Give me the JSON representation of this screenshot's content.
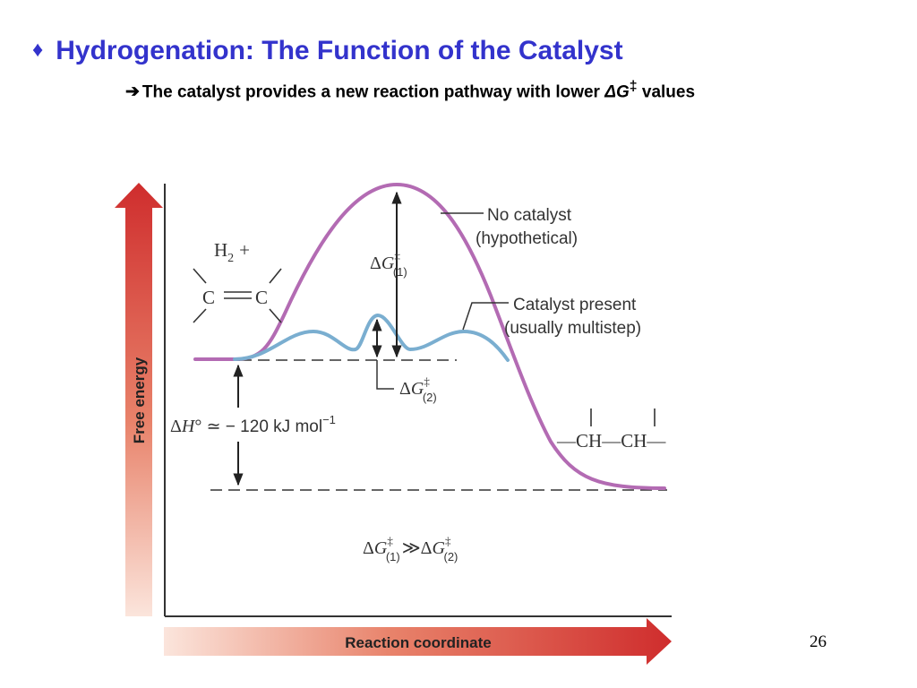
{
  "slide": {
    "title_bullet": "♦",
    "title": "Hydrogenation: The Function of the Catalyst",
    "subtitle_arrow": "➔",
    "subtitle_prefix": "The catalyst provides a new reaction pathway with lower ",
    "subtitle_symbol": "ΔG",
    "subtitle_super": "‡",
    "subtitle_suffix": " values",
    "page_number": "26"
  },
  "diagram": {
    "y_axis_label": "Free energy",
    "x_axis_label": "Reaction coordinate",
    "reactants": {
      "h2_text": "H",
      "h2_sub": "2",
      "plus": "+",
      "carbon1": "C",
      "carbon2": "C"
    },
    "product": {
      "dash1": "—",
      "ch1": "CH",
      "dash2": "—",
      "ch2": "CH",
      "dash3": "—"
    },
    "no_catalyst_label_1": "No catalyst",
    "no_catalyst_label_2": "(hypothetical)",
    "catalyst_label_1": "Catalyst present",
    "catalyst_label_2": "(usually multistep)",
    "dg1": {
      "delta": "Δ",
      "g": "G",
      "dagger": "‡",
      "sub": "(1)"
    },
    "dg2": {
      "delta": "Δ",
      "g": "G",
      "dagger": "‡",
      "sub": "(2)"
    },
    "dh": {
      "delta": "Δ",
      "h": "H",
      "degree": "°",
      "approx": " ≃ − 120 kJ mol",
      "exp": "−1"
    },
    "comparison": {
      "delta1": "Δ",
      "g1": "G",
      "dagger1": "‡",
      "sub1": "(1)",
      "op": "≫",
      "delta2": "Δ",
      "g2": "G",
      "dagger2": "‡",
      "sub2": "(2)"
    },
    "colors": {
      "no_catalyst_curve": "#b36bb3",
      "catalyst_curve": "#7aaed0",
      "title": "#3333cc",
      "arrow_red": "#d03030"
    }
  }
}
